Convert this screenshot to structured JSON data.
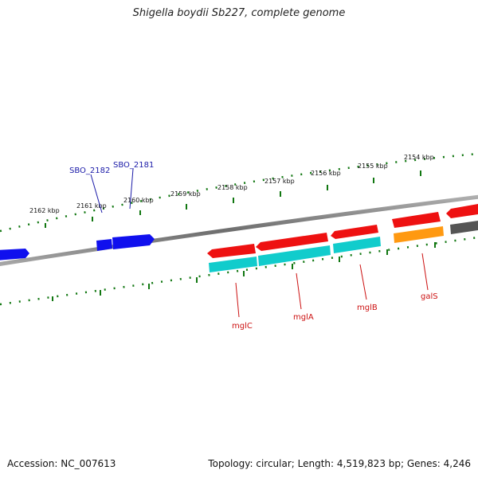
{
  "title": "Shigella boydii Sb227, complete genome",
  "footer": {
    "accession": "Accession: NC_007613",
    "stats": "Topology: circular; Length: 4,519,823 bp; Genes: 4,246"
  },
  "kbp_ticks": [
    "2162 kbp",
    "2161 kbp",
    "2160 kbp",
    "2159 kbp",
    "2158 kbp",
    "2157 kbp",
    "2156 kbp",
    "2155 kbp",
    "2154 kbp"
  ],
  "gene_labels": {
    "SBO_2182": "SBO_2182",
    "SBO_2181": "SBO_2181",
    "mglC": "mglC",
    "mglA": "mglA",
    "mglB": "mglB",
    "galS": "galS"
  },
  "colors": {
    "blue_gene": "#1010ee",
    "red_gene": "#ee1111",
    "cyan_gene": "#11cccc",
    "orange_gene": "#ff9911",
    "gray_gene": "#555555",
    "tick_green": "#117711",
    "backbone": "#888888"
  }
}
